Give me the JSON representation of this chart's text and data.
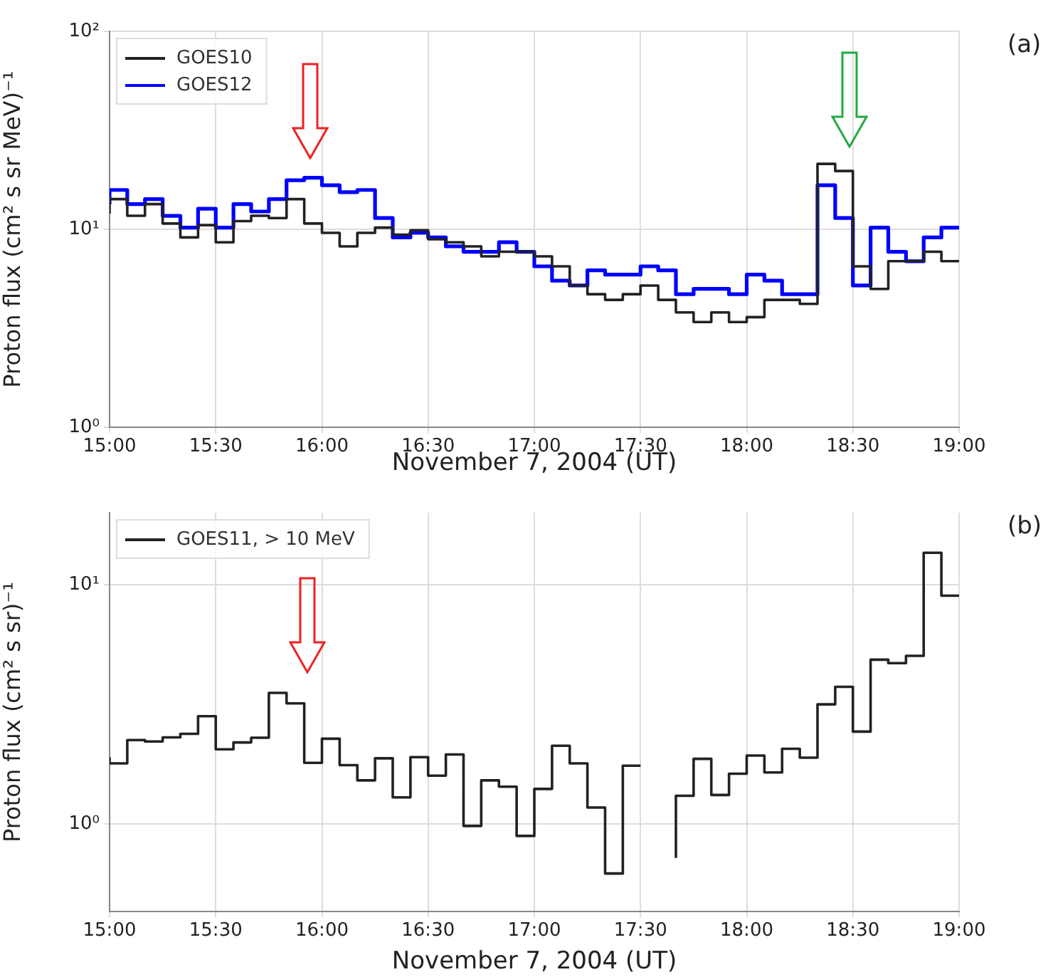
{
  "chart_data": [
    {
      "type": "step",
      "xlabel": "November 7, 2004 (UT)",
      "ylabel": "Proton flux (cm² s sr MeV)⁻¹",
      "annotations": [
        "(a)"
      ],
      "log": "y",
      "grid": true,
      "legend": "top left",
      "x": [
        "2004-11-07T15:00",
        "2004-11-07T15:05",
        "2004-11-07T15:10",
        "2004-11-07T15:15",
        "2004-11-07T15:20",
        "2004-11-07T15:25",
        "2004-11-07T15:30",
        "2004-11-07T15:35",
        "2004-11-07T15:40",
        "2004-11-07T15:45",
        "2004-11-07T15:50",
        "2004-11-07T15:55",
        "2004-11-07T16:00",
        "2004-11-07T16:05",
        "2004-11-07T16:10",
        "2004-11-07T16:15",
        "2004-11-07T16:20",
        "2004-11-07T16:25",
        "2004-11-07T16:30",
        "2004-11-07T16:35",
        "2004-11-07T16:40",
        "2004-11-07T16:45",
        "2004-11-07T16:50",
        "2004-11-07T16:55",
        "2004-11-07T17:00",
        "2004-11-07T17:05",
        "2004-11-07T17:10",
        "2004-11-07T17:15",
        "2004-11-07T17:20",
        "2004-11-07T17:25",
        "2004-11-07T17:30",
        "2004-11-07T17:35",
        "2004-11-07T17:40",
        "2004-11-07T17:45",
        "2004-11-07T17:50",
        "2004-11-07T17:55",
        "2004-11-07T18:00",
        "2004-11-07T18:05",
        "2004-11-07T18:10",
        "2004-11-07T18:15",
        "2004-11-07T18:20",
        "2004-11-07T18:25",
        "2004-11-07T18:30",
        "2004-11-07T18:35",
        "2004-11-07T18:40",
        "2004-11-07T18:45",
        "2004-11-07T18:50",
        "2004-11-07T18:55",
        "2004-11-07T19:00"
      ],
      "series": [
        {
          "name": "GOES10",
          "color": "#222222",
          "values": [
            12.0,
            14.2,
            11.7,
            13.4,
            10.7,
            9.1,
            10.5,
            8.6,
            11.0,
            11.7,
            11.4,
            14.2,
            10.7,
            9.6,
            8.2,
            9.6,
            10.2,
            9.4,
            9.9,
            8.9,
            8.6,
            8.2,
            7.3,
            7.7,
            7.7,
            7.3,
            6.5,
            5.2,
            4.7,
            4.4,
            4.7,
            5.2,
            4.4,
            3.8,
            3.4,
            3.8,
            3.4,
            3.6,
            4.4,
            4.4,
            4.2,
            21.4,
            19.7,
            6.5,
            5.0,
            6.9,
            6.9,
            7.7,
            6.9
          ]
        },
        {
          "name": "GOES12",
          "color": "#0000ff",
          "values": [
            13.4,
            15.8,
            13.4,
            14.2,
            11.7,
            10.2,
            12.7,
            10.2,
            13.4,
            12.3,
            14.2,
            17.7,
            18.2,
            16.7,
            15.4,
            15.8,
            11.4,
            9.1,
            9.6,
            9.1,
            8.2,
            7.7,
            7.7,
            8.6,
            7.7,
            6.5,
            5.5,
            5.2,
            6.2,
            5.9,
            5.9,
            6.5,
            6.2,
            4.7,
            5.0,
            5.0,
            4.7,
            5.9,
            5.5,
            4.7,
            4.7,
            16.7,
            11.4,
            5.2,
            10.2,
            7.7,
            6.9,
            9.1,
            10.2
          ]
        }
      ],
      "xlim": [
        "2004-11-07T15:00",
        "2004-11-07T19:00"
      ],
      "xticks": [
        {
          "value": "2004-11-07T15:00",
          "label": "15:00"
        },
        {
          "value": "2004-11-07T15:30",
          "label": "15:30"
        },
        {
          "value": "2004-11-07T16:00",
          "label": "16:00"
        },
        {
          "value": "2004-11-07T16:30",
          "label": "16:30"
        },
        {
          "value": "2004-11-07T17:00",
          "label": "17:00"
        },
        {
          "value": "2004-11-07T17:30",
          "label": "17:30"
        },
        {
          "value": "2004-11-07T18:00",
          "label": "18:00"
        },
        {
          "value": "2004-11-07T18:30",
          "label": "18:30"
        },
        {
          "value": "2004-11-07T19:00",
          "label": "19:00"
        }
      ],
      "ylim": [
        1,
        100
      ],
      "yticks": [
        {
          "value": 1,
          "label": "10⁰"
        },
        {
          "value": 10,
          "label": "10¹"
        },
        {
          "value": 100,
          "label": "10²"
        }
      ]
    },
    {
      "type": "step",
      "xlabel": "November 7, 2004 (UT)",
      "ylabel": "Proton flux (cm² s sr)⁻¹",
      "annotations": [
        "(b)"
      ],
      "log": "y",
      "grid": true,
      "legend": "top left",
      "x": [
        "2004-11-07T15:00",
        "2004-11-07T15:05",
        "2004-11-07T15:10",
        "2004-11-07T15:15",
        "2004-11-07T15:20",
        "2004-11-07T15:25",
        "2004-11-07T15:30",
        "2004-11-07T15:35",
        "2004-11-07T15:40",
        "2004-11-07T15:45",
        "2004-11-07T15:50",
        "2004-11-07T15:55",
        "2004-11-07T16:00",
        "2004-11-07T16:05",
        "2004-11-07T16:10",
        "2004-11-07T16:15",
        "2004-11-07T16:20",
        "2004-11-07T16:25",
        "2004-11-07T16:30",
        "2004-11-07T16:35",
        "2004-11-07T16:40",
        "2004-11-07T16:45",
        "2004-11-07T16:50",
        "2004-11-07T16:55",
        "2004-11-07T17:00",
        "2004-11-07T17:05",
        "2004-11-07T17:10",
        "2004-11-07T17:15",
        "2004-11-07T17:20",
        "2004-11-07T17:25",
        "2004-11-07T17:30",
        "2004-11-07T17:35",
        "2004-11-07T17:40",
        "2004-11-07T17:45",
        "2004-11-07T17:50",
        "2004-11-07T17:55",
        "2004-11-07T18:00",
        "2004-11-07T18:05",
        "2004-11-07T18:10",
        "2004-11-07T18:15",
        "2004-11-07T18:20",
        "2004-11-07T18:25",
        "2004-11-07T18:30",
        "2004-11-07T18:35",
        "2004-11-07T18:40",
        "2004-11-07T18:45",
        "2004-11-07T18:50",
        "2004-11-07T18:55",
        "2004-11-07T19:00"
      ],
      "series": [
        {
          "name": "GOES11, > 10 MeV",
          "color": "#222222",
          "values": [
            1.9,
            1.79,
            2.24,
            2.21,
            2.3,
            2.38,
            2.82,
            2.05,
            2.19,
            2.29,
            3.53,
            3.19,
            1.8,
            2.27,
            1.76,
            1.52,
            1.88,
            1.29,
            1.9,
            1.59,
            1.95,
            0.98,
            1.52,
            1.43,
            0.89,
            1.4,
            2.12,
            1.79,
            1.17,
            0.62,
            1.75,
            null,
            0.72,
            1.31,
            1.87,
            1.32,
            1.62,
            1.93,
            1.64,
            2.06,
            1.89,
            3.16,
            3.74,
            2.43,
            4.86,
            4.7,
            5.04,
            13.6,
            9.0
          ]
        }
      ],
      "xlim": [
        "2004-11-07T15:00",
        "2004-11-07T19:00"
      ],
      "xticks": [
        {
          "value": "2004-11-07T15:00",
          "label": "15:00"
        },
        {
          "value": "2004-11-07T15:30",
          "label": "15:30"
        },
        {
          "value": "2004-11-07T16:00",
          "label": "16:00"
        },
        {
          "value": "2004-11-07T16:30",
          "label": "16:30"
        },
        {
          "value": "2004-11-07T17:00",
          "label": "17:00"
        },
        {
          "value": "2004-11-07T17:30",
          "label": "17:30"
        },
        {
          "value": "2004-11-07T18:00",
          "label": "18:00"
        },
        {
          "value": "2004-11-07T18:30",
          "label": "18:30"
        },
        {
          "value": "2004-11-07T19:00",
          "label": "19:00"
        }
      ],
      "ylim": [
        0.43,
        20
      ],
      "yticks": [
        {
          "value": 1,
          "label": "10⁰"
        },
        {
          "value": 10,
          "label": "10¹"
        }
      ]
    }
  ]
}
